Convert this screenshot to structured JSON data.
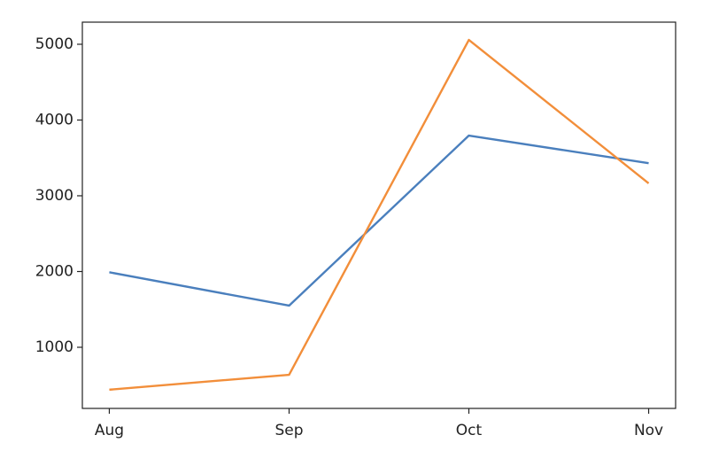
{
  "chart_data": {
    "type": "line",
    "categories": [
      "Aug",
      "Sep",
      "Oct",
      "Nov"
    ],
    "series": [
      {
        "color": "#4a7fbd",
        "values": [
          1990,
          1550,
          3795,
          3430
        ]
      },
      {
        "color": "#f28e3a",
        "values": [
          440,
          637,
          5058,
          3164
        ]
      }
    ],
    "ylim": [
      193,
      5292
    ],
    "yticks": [
      1000,
      2000,
      3000,
      4000,
      5000
    ],
    "grid": false
  }
}
